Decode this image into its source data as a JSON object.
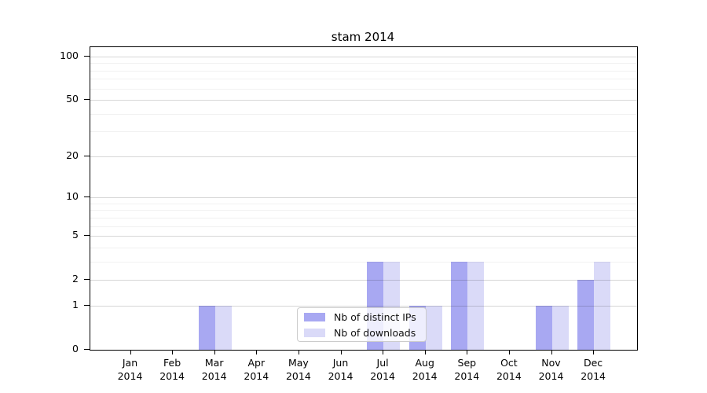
{
  "title": "stam 2014",
  "chart_data": {
    "type": "bar",
    "title": "stam 2014",
    "categories": [
      "Jan",
      "Feb",
      "Mar",
      "Apr",
      "May",
      "Jun",
      "Jul",
      "Aug",
      "Sep",
      "Oct",
      "Nov",
      "Dec"
    ],
    "x_year_label": "2014",
    "series": [
      {
        "name": "Nb of distinct IPs",
        "color": "#a8a8f2",
        "values": [
          0,
          0,
          1,
          0,
          0,
          0,
          3,
          1,
          3,
          0,
          1,
          2
        ]
      },
      {
        "name": "Nb of downloads",
        "color": "#dadaf8",
        "values": [
          0,
          0,
          1,
          0,
          0,
          0,
          3,
          1,
          3,
          0,
          1,
          3
        ]
      }
    ],
    "yscale": "log1p",
    "y_ticks": [
      0,
      1,
      2,
      5,
      10,
      20,
      50,
      100
    ],
    "y_minor_ticks": [
      3,
      4,
      6,
      7,
      8,
      9,
      30,
      40,
      60,
      70,
      80,
      90
    ],
    "ylim": [
      0,
      116
    ],
    "xlabel": "",
    "ylabel": "",
    "grid": true,
    "legend_position": "lower center"
  },
  "colors": {
    "major_grid": "#d9d9d9",
    "minor_grid": "#f1f1f1",
    "spine": "#000000",
    "legend_border": "#cccccc"
  }
}
